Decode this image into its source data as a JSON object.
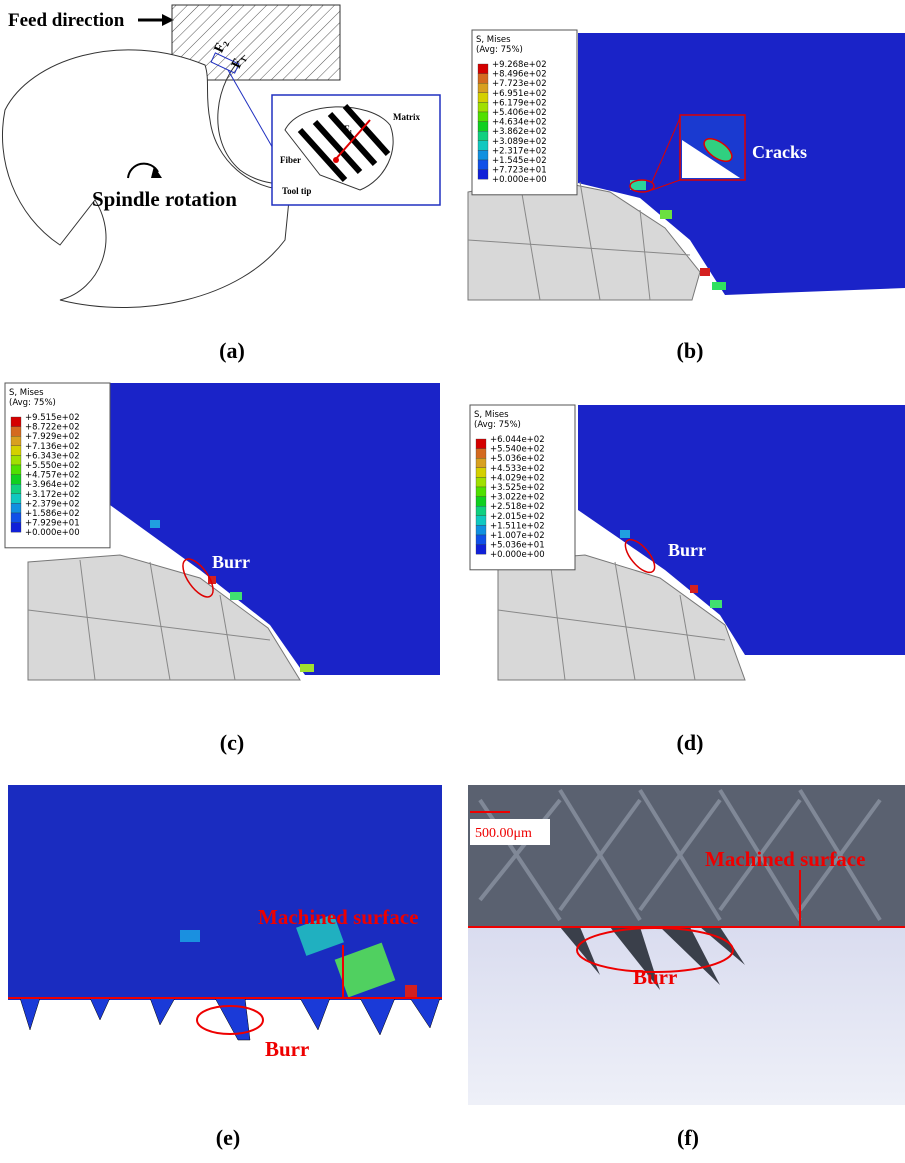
{
  "panel_a": {
    "label": "(a)",
    "feed_direction": "Feed direction",
    "force_2": "F₂",
    "force_1": "F₁",
    "spindle_rotation": "Spindle rotation",
    "inset": {
      "matrix": "Matrix",
      "fiber": "Fiber",
      "tool_tip": "Tool tip",
      "force": "F₁"
    }
  },
  "panel_b": {
    "label": "(b)",
    "cracks": "Cracks",
    "legend": {
      "title": "S, Mises",
      "subtitle": "(Avg: 75%)",
      "values": [
        "+9.268e+02",
        "+8.496e+02",
        "+7.723e+02",
        "+6.951e+02",
        "+6.179e+02",
        "+5.406e+02",
        "+4.634e+02",
        "+3.862e+02",
        "+3.089e+02",
        "+2.317e+02",
        "+1.545e+02",
        "+7.723e+01",
        "+0.000e+00"
      ]
    }
  },
  "panel_c": {
    "label": "(c)",
    "burr": "Burr",
    "legend": {
      "title": "S, Mises",
      "subtitle": "(Avg: 75%)",
      "values": [
        "+9.515e+02",
        "+8.722e+02",
        "+7.929e+02",
        "+7.136e+02",
        "+6.343e+02",
        "+5.550e+02",
        "+4.757e+02",
        "+3.964e+02",
        "+3.172e+02",
        "+2.379e+02",
        "+1.586e+02",
        "+7.929e+01",
        "+0.000e+00"
      ]
    }
  },
  "panel_d": {
    "label": "(d)",
    "burr": "Burr",
    "legend": {
      "title": "S, Mises",
      "subtitle": "(Avg: 75%)",
      "values": [
        "+6.044e+02",
        "+5.540e+02",
        "+5.036e+02",
        "+4.533e+02",
        "+4.029e+02",
        "+3.525e+02",
        "+3.022e+02",
        "+2.518e+02",
        "+2.015e+02",
        "+1.511e+02",
        "+1.007e+02",
        "+5.036e+01",
        "+0.000e+00"
      ]
    }
  },
  "panel_e": {
    "label": "(e)",
    "machined_surface": "Machined surface",
    "burr": "Burr"
  },
  "panel_f": {
    "label": "(f)",
    "scale": "500.00μm",
    "machined_surface": "Machined surface",
    "burr": "Burr"
  }
}
